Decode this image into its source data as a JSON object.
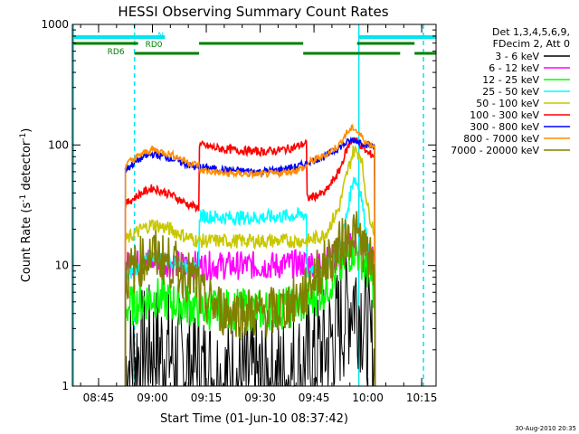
{
  "chart_data": {
    "type": "line",
    "title": "HESSI Observing Summary Count Rates",
    "xlabel": "Start Time (01-Jun-10 08:37:42)",
    "ylabel_parts": [
      "Count Rate (s",
      "-1",
      " detector",
      "-1",
      ")"
    ],
    "yscale": "log",
    "xlim": [
      "08:37:42",
      "10:19:00"
    ],
    "ylim": [
      1,
      1000
    ],
    "x_ticks": [
      "08:45",
      "09:00",
      "09:15",
      "09:30",
      "09:45",
      "10:00",
      "10:15"
    ],
    "y_ticks": [
      "1",
      "10",
      "100",
      "1000"
    ],
    "footer": "30-Aug-2010 20:35",
    "legend": {
      "position": "right",
      "header": [
        "Det 1,3,4,5,6,9,",
        "FDecim 2, Att 0"
      ]
    },
    "flags": [
      {
        "label": "N",
        "color": "#00e5ee",
        "segments": [
          [
            "08:38:00",
            "09:03:30"
          ],
          [
            "09:57:30",
            "10:19:00"
          ]
        ]
      },
      {
        "label": "RD0",
        "color": "#008000",
        "segments": [
          [
            "08:38:00",
            "08:56:00"
          ],
          [
            "09:13:00",
            "09:42:00"
          ],
          [
            "09:57:00",
            "10:13:00"
          ]
        ]
      },
      {
        "label": "RD6",
        "color": "#008000",
        "segments": [
          [
            "08:55:00",
            "09:13:00"
          ],
          [
            "09:42:00",
            "10:09:00"
          ],
          [
            "10:13:00",
            "10:19:00"
          ]
        ]
      }
    ],
    "saa_lines": [
      "08:38:00",
      "08:55:00",
      "09:57:30",
      "10:15:30"
    ],
    "x": [
      "08:52:30",
      "08:53:30",
      "08:57:00",
      "09:00:00",
      "09:05:00",
      "09:10:00",
      "09:12:59",
      "09:13:01",
      "09:20:00",
      "09:30:00",
      "09:35:00",
      "09:40:00",
      "09:42:59",
      "09:43:01",
      "09:48:00",
      "09:52:00",
      "09:54:00",
      "09:56:00",
      "09:58:00",
      "10:00:00",
      "10:02:00"
    ],
    "series": [
      {
        "name": "3 - 6 keV",
        "color": "#000000",
        "values": [
          1.5,
          1.6,
          1.9,
          2.1,
          1.8,
          1.5,
          1.4,
          1.3,
          1.1,
          1.1,
          1.1,
          1.3,
          1.5,
          1.5,
          2.0,
          3.0,
          4.2,
          5.8,
          4.5,
          2.5,
          1.4
        ]
      },
      {
        "name": "6 - 12 keV",
        "color": "#ff00ff",
        "values": [
          10,
          10.2,
          10.5,
          11,
          10.5,
          10,
          10.2,
          10,
          10,
          10,
          10,
          10.3,
          10.5,
          10.5,
          11,
          12,
          13.5,
          15.5,
          14,
          12,
          11
        ]
      },
      {
        "name": "12 - 25 keV",
        "color": "#00ff00",
        "values": [
          4.5,
          4.6,
          5,
          5.5,
          5,
          4.7,
          4.5,
          4.4,
          4.3,
          4.3,
          4.4,
          4.6,
          5,
          5,
          6.5,
          9,
          11.5,
          14,
          12,
          9,
          6
        ]
      },
      {
        "name": "25 - 50 keV",
        "color": "#00ffff",
        "values": [
          8,
          8.4,
          10.5,
          12,
          11,
          9.5,
          9,
          26,
          25,
          25,
          25.5,
          26,
          26.5,
          8.5,
          9.5,
          13,
          25,
          55,
          42,
          15,
          9
        ]
      },
      {
        "name": "50 - 100 keV",
        "color": "#c8c800",
        "values": [
          16,
          17,
          20,
          22,
          20,
          17,
          16,
          16,
          16,
          16,
          16,
          16,
          16,
          16,
          18,
          30,
          55,
          90,
          85,
          30,
          18
        ]
      },
      {
        "name": "100 - 300 keV",
        "color": "#ff0000",
        "values": [
          32,
          34,
          40,
          44,
          39,
          32,
          30,
          100,
          92,
          88,
          90,
          96,
          105,
          36,
          40,
          60,
          90,
          115,
          100,
          85,
          82
        ]
      },
      {
        "name": "300 - 800 keV",
        "color": "#0000ff",
        "values": [
          62,
          66,
          78,
          84,
          78,
          68,
          64,
          66,
          62,
          60,
          62,
          66,
          70,
          72,
          80,
          95,
          104,
          110,
          106,
          100,
          96
        ]
      },
      {
        "name": "800 - 7000 keV",
        "color": "#ff8c00",
        "values": [
          68,
          72,
          84,
          92,
          84,
          72,
          68,
          62,
          58,
          57,
          58,
          62,
          66,
          70,
          82,
          100,
          125,
          140,
          120,
          102,
          98
        ]
      },
      {
        "name": "7000 - 20000 keV",
        "color": "#808000",
        "values": [
          8,
          8.5,
          11,
          12.5,
          10.5,
          8,
          7,
          5.5,
          4.2,
          4,
          4.2,
          5.2,
          6,
          7,
          10,
          14,
          17,
          19,
          16,
          12,
          8
        ]
      }
    ]
  }
}
